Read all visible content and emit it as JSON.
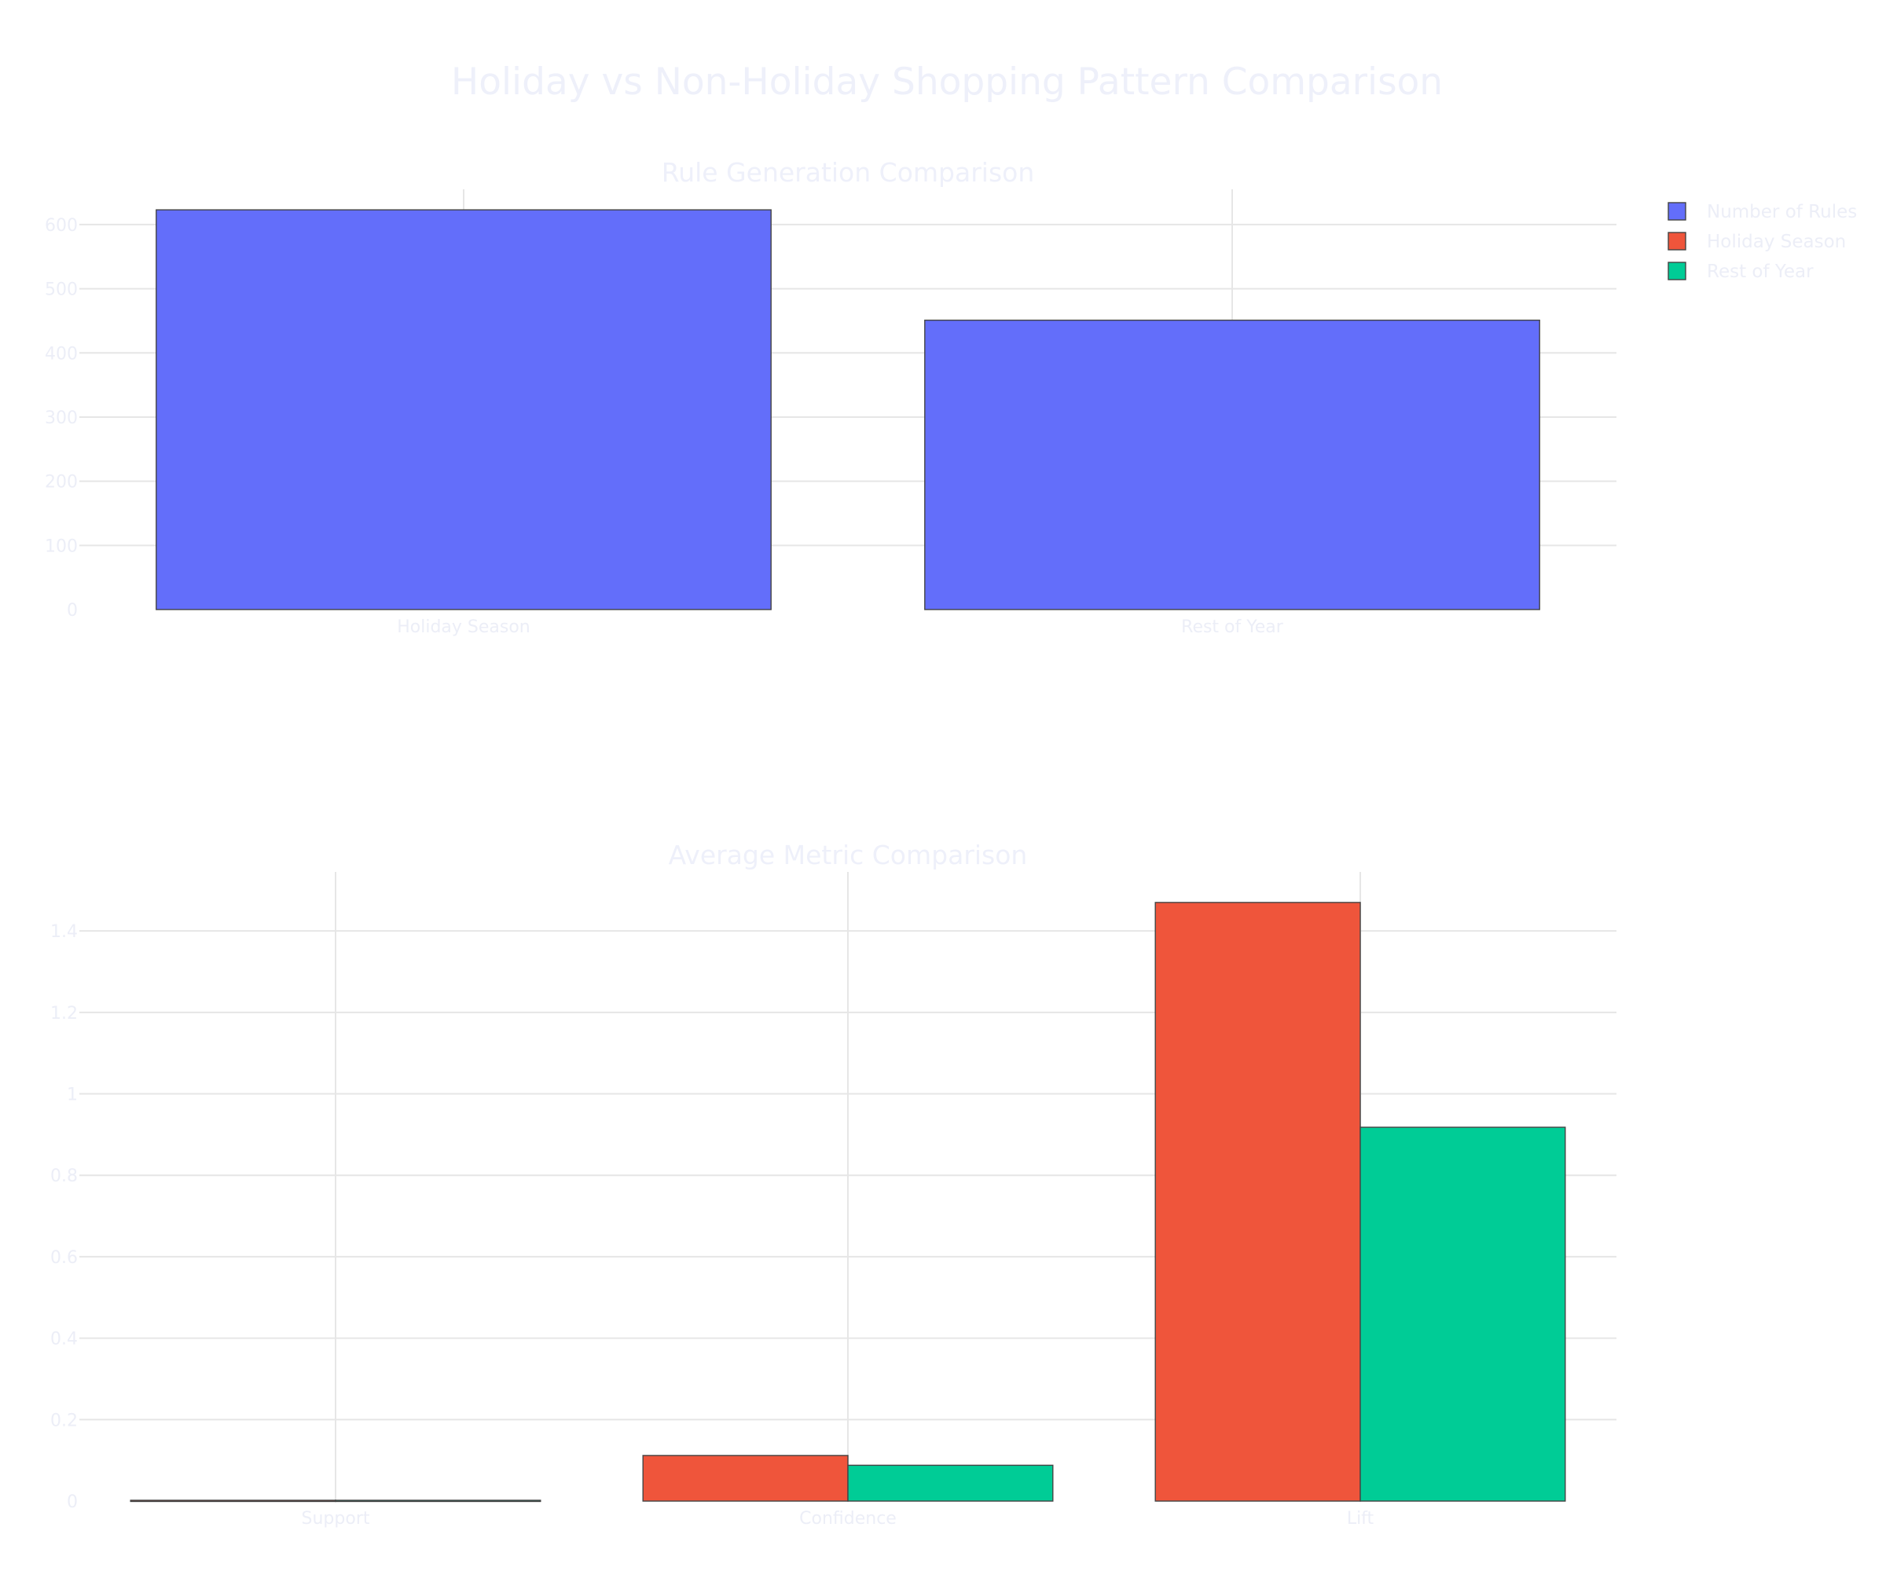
{
  "title": "Holiday vs Non-Holiday Shopping Pattern Comparison",
  "colors": {
    "number_of_rules": "#636efa",
    "holiday_season": "#ef553b",
    "rest_of_year": "#00cc96"
  },
  "legend": [
    "Number of Rules",
    "Holiday Season",
    "Rest of Year"
  ],
  "chart_data": [
    {
      "type": "bar",
      "title": "Rule Generation Comparison",
      "categories": [
        "Holiday Season",
        "Rest of Year"
      ],
      "series": [
        {
          "name": "Number of Rules",
          "values": [
            623,
            451
          ]
        }
      ],
      "ylim": [
        0,
        655
      ],
      "yticks": [
        "0",
        "100",
        "200",
        "300",
        "400",
        "500",
        "600"
      ],
      "grid": true
    },
    {
      "type": "bar",
      "title": "Average Metric Comparison",
      "categories": [
        "Support",
        "Confidence",
        "Lift"
      ],
      "series": [
        {
          "name": "Holiday Season",
          "values": [
            0.002,
            0.112,
            1.47
          ]
        },
        {
          "name": "Rest of Year",
          "values": [
            0.002,
            0.088,
            0.918
          ]
        }
      ],
      "ylim": [
        0,
        1.545
      ],
      "yticks": [
        "0",
        "0.2",
        "0.4",
        "0.6",
        "0.8",
        "1",
        "1.2",
        "1.4"
      ],
      "grid": true
    }
  ]
}
